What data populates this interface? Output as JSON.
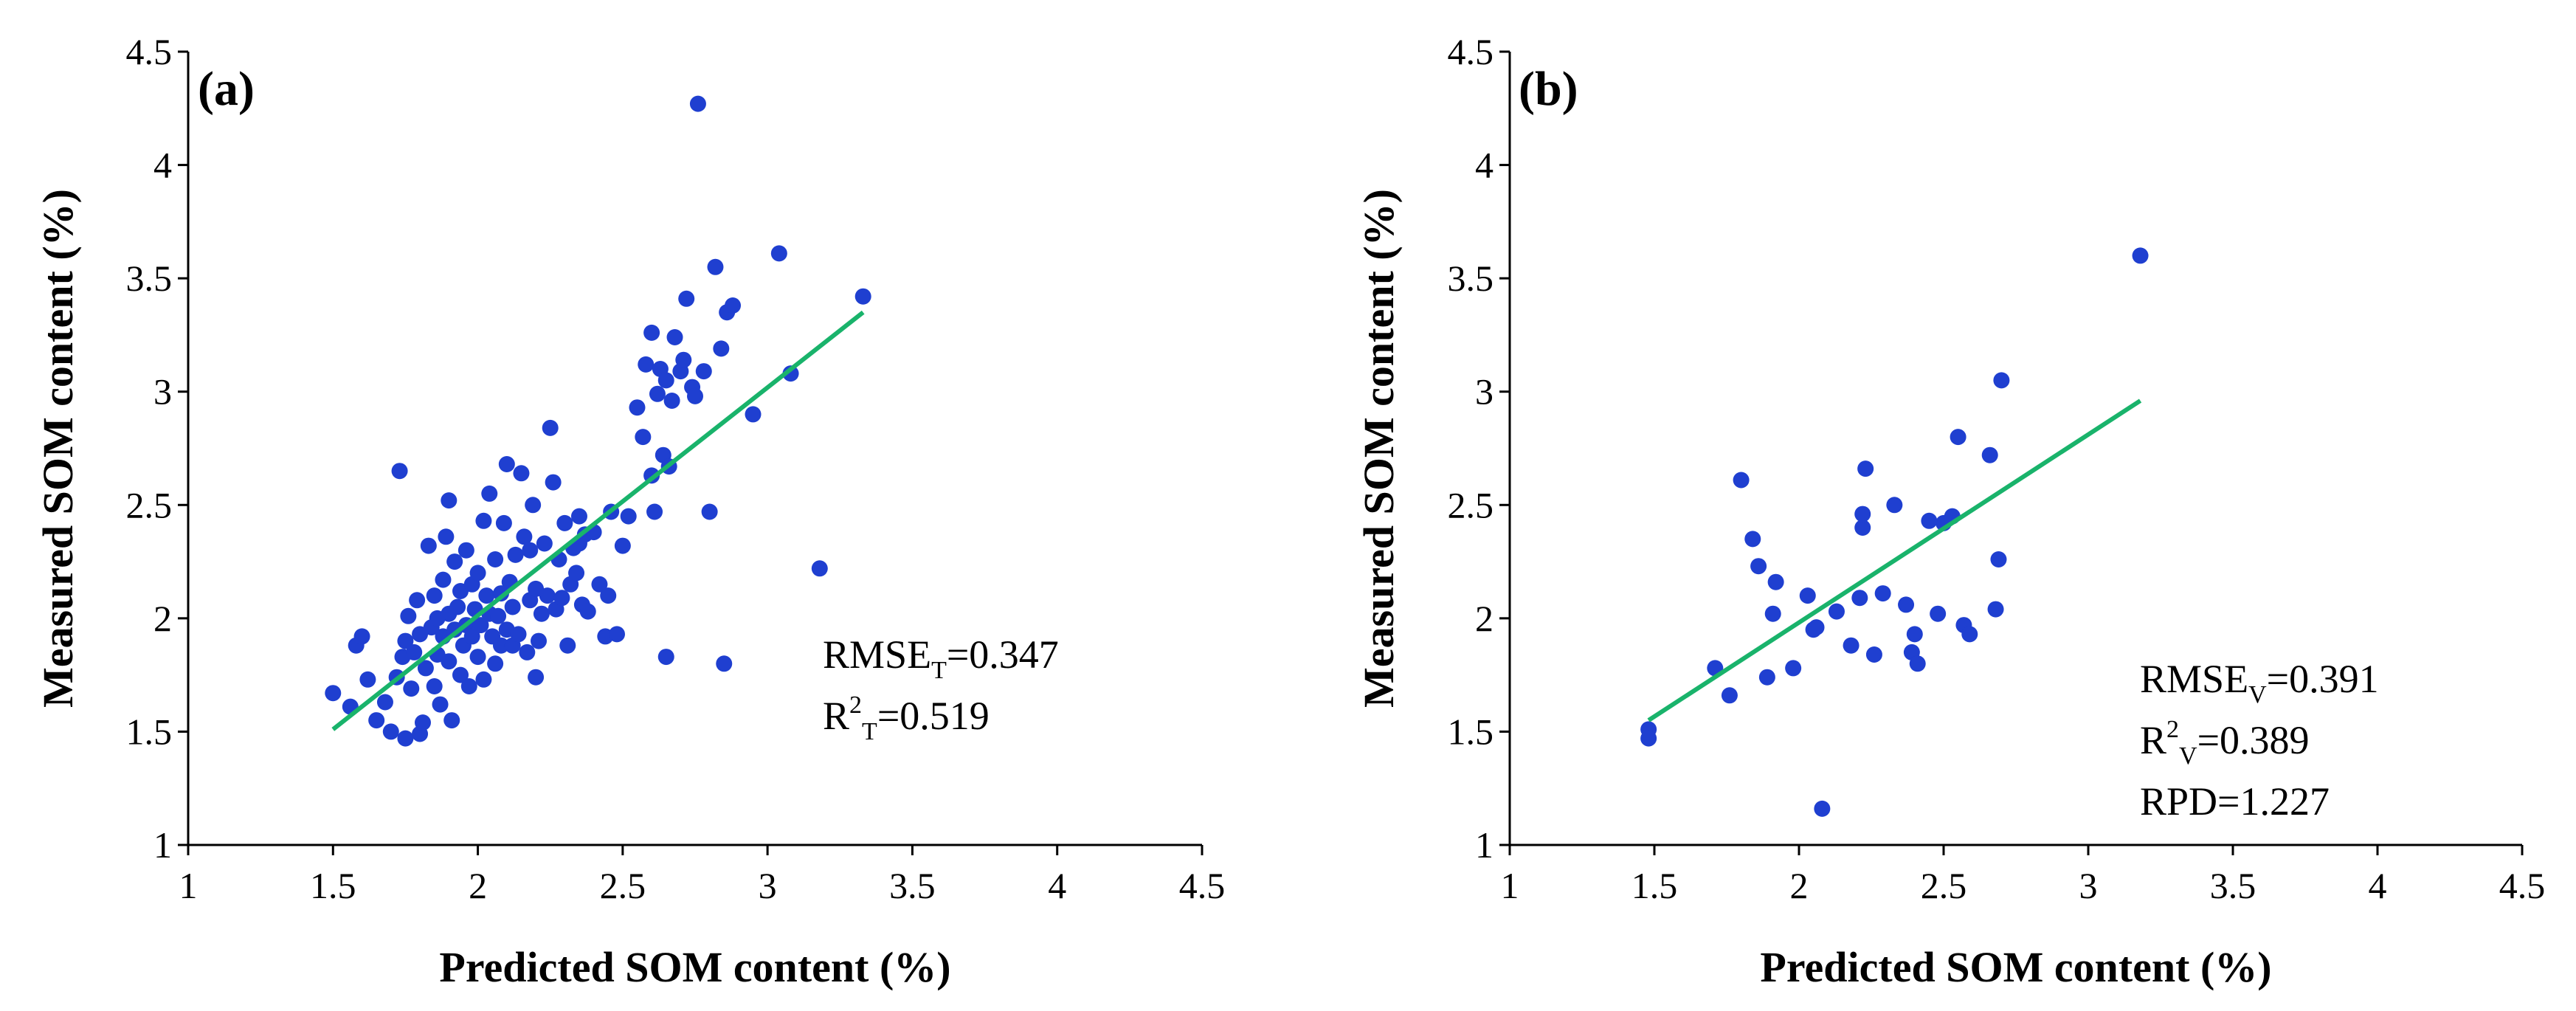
{
  "chart_data": [
    {
      "panel": "(a)",
      "type": "scatter",
      "xlabel": "Predicted SOM content (%)",
      "ylabel": "Measured SOM content (%)",
      "xlim": [
        1,
        4.5
      ],
      "ylim": [
        1,
        4.5
      ],
      "xticks": [
        "1",
        "1.5",
        "2",
        "2.5",
        "3",
        "3.5",
        "4",
        "4.5"
      ],
      "yticks": [
        "1",
        "1.5",
        "2",
        "2.5",
        "3",
        "3.5",
        "4",
        "4.5"
      ],
      "colors": {
        "points": "#1f3fd0",
        "fit_line": "#19b36b"
      },
      "fit_line": {
        "x": [
          1.5,
          3.33
        ],
        "y": [
          1.51,
          3.35
        ]
      },
      "stats": [
        {
          "main": "RMSE",
          "sub": "T",
          "value": "=0.347"
        },
        {
          "main": "R",
          "sup": "2",
          "sub": "T",
          "value": "=0.519"
        }
      ],
      "points": {
        "x": [
          1.5,
          1.56,
          1.58,
          1.6,
          1.62,
          1.65,
          1.68,
          1.7,
          1.72,
          1.73,
          1.74,
          1.75,
          1.76,
          1.77,
          1.78,
          1.79,
          1.8,
          1.8,
          1.81,
          1.82,
          1.83,
          1.84,
          1.85,
          1.85,
          1.86,
          1.86,
          1.87,
          1.88,
          1.88,
          1.89,
          1.9,
          1.9,
          1.91,
          1.92,
          1.92,
          1.93,
          1.94,
          1.94,
          1.95,
          1.96,
          1.96,
          1.97,
          1.98,
          1.98,
          1.99,
          2.0,
          2.0,
          2.01,
          2.02,
          2.02,
          2.03,
          2.04,
          2.04,
          2.05,
          2.06,
          2.06,
          2.07,
          2.08,
          2.08,
          2.09,
          2.1,
          2.1,
          2.11,
          2.12,
          2.12,
          2.13,
          2.14,
          2.15,
          2.16,
          2.17,
          2.18,
          2.18,
          2.19,
          2.2,
          2.2,
          2.21,
          2.22,
          2.23,
          2.24,
          2.25,
          2.26,
          2.27,
          2.28,
          2.29,
          2.3,
          2.31,
          2.32,
          2.33,
          2.34,
          2.35,
          2.36,
          2.37,
          2.38,
          2.4,
          2.42,
          2.44,
          2.46,
          2.48,
          2.5,
          2.52,
          2.55,
          2.57,
          2.58,
          2.6,
          2.6,
          2.61,
          2.62,
          2.63,
          2.64,
          2.65,
          2.66,
          2.67,
          2.68,
          2.7,
          2.71,
          2.72,
          2.74,
          2.75,
          2.76,
          2.78,
          2.8,
          2.82,
          2.84,
          2.85,
          2.86,
          2.88,
          2.95,
          3.04,
          3.08,
          3.18,
          3.33,
          1.75,
          1.9,
          2.35,
          2.45,
          2.65
        ],
        "y": [
          1.67,
          1.61,
          1.88,
          1.92,
          1.73,
          1.55,
          1.63,
          1.5,
          1.74,
          2.65,
          1.83,
          1.47,
          2.01,
          1.69,
          1.85,
          2.08,
          1.49,
          1.93,
          1.54,
          1.78,
          2.32,
          1.96,
          1.7,
          2.1,
          1.84,
          2.0,
          1.62,
          1.92,
          2.17,
          2.36,
          1.81,
          2.02,
          1.55,
          1.95,
          2.25,
          2.05,
          1.75,
          2.12,
          1.88,
          1.97,
          2.3,
          1.7,
          2.15,
          1.92,
          2.04,
          1.83,
          2.2,
          1.97,
          2.43,
          1.73,
          2.1,
          2.02,
          2.55,
          1.92,
          2.26,
          1.8,
          2.01,
          1.88,
          2.11,
          2.42,
          1.95,
          2.68,
          2.16,
          1.88,
          2.05,
          2.28,
          1.93,
          2.64,
          2.36,
          1.85,
          2.08,
          2.3,
          2.5,
          1.74,
          2.13,
          1.9,
          2.02,
          2.33,
          2.1,
          2.84,
          2.6,
          2.04,
          2.26,
          2.09,
          2.42,
          1.88,
          2.15,
          2.31,
          2.2,
          2.45,
          2.06,
          2.37,
          2.03,
          2.38,
          2.15,
          1.92,
          2.47,
          1.93,
          2.32,
          2.45,
          2.93,
          2.8,
          3.12,
          2.63,
          3.26,
          2.47,
          2.99,
          3.1,
          2.72,
          3.05,
          2.67,
          2.96,
          3.24,
          3.09,
          3.14,
          3.41,
          3.02,
          2.98,
          4.27,
          3.09,
          2.47,
          3.55,
          3.19,
          1.8,
          3.35,
          3.38,
          2.9,
          3.61,
          3.08,
          2.22,
          3.42,
          1.9,
          2.52,
          2.33,
          2.1,
          1.83
        ]
      }
    },
    {
      "panel": "(b)",
      "type": "scatter",
      "xlabel": "Predicted SOM content (%)",
      "ylabel": "Measured SOM content (%)",
      "xlim": [
        1,
        4.5
      ],
      "ylim": [
        1,
        4.5
      ],
      "xticks": [
        "1",
        "1.5",
        "2",
        "2.5",
        "3",
        "3.5",
        "4",
        "4.5"
      ],
      "yticks": [
        "1",
        "1.5",
        "2",
        "2.5",
        "3",
        "3.5",
        "4",
        "4.5"
      ],
      "colors": {
        "points": "#1f3fd0",
        "fit_line": "#19b36b"
      },
      "fit_line": {
        "x": [
          1.48,
          3.18
        ],
        "y": [
          1.55,
          2.96
        ]
      },
      "stats": [
        {
          "main": "RMSE",
          "sub": "V",
          "value": "=0.391"
        },
        {
          "main": "R",
          "sup": "2",
          "sub": "V",
          "value": "=0.389"
        },
        {
          "main": "RPD",
          "value": "=1.227"
        }
      ],
      "points": {
        "x": [
          1.48,
          1.48,
          1.71,
          1.76,
          1.8,
          1.84,
          1.86,
          1.89,
          1.91,
          1.92,
          1.98,
          2.03,
          2.05,
          2.08,
          2.13,
          2.18,
          2.21,
          2.22,
          2.22,
          2.23,
          2.26,
          2.29,
          2.33,
          2.37,
          2.39,
          2.41,
          2.48,
          2.5,
          2.53,
          2.55,
          2.57,
          2.59,
          2.66,
          2.68,
          2.69,
          2.7,
          2.06,
          2.45,
          3.18,
          2.4
        ],
        "y": [
          1.51,
          1.47,
          1.78,
          1.66,
          2.61,
          2.35,
          2.23,
          1.74,
          2.02,
          2.16,
          1.78,
          2.1,
          1.95,
          1.16,
          2.03,
          1.88,
          2.09,
          2.4,
          2.46,
          2.66,
          1.84,
          2.11,
          2.5,
          2.06,
          1.85,
          1.8,
          2.02,
          2.42,
          2.45,
          2.8,
          1.97,
          1.93,
          2.72,
          2.04,
          2.26,
          3.05,
          1.96,
          2.43,
          3.6,
          1.93
        ]
      }
    }
  ]
}
